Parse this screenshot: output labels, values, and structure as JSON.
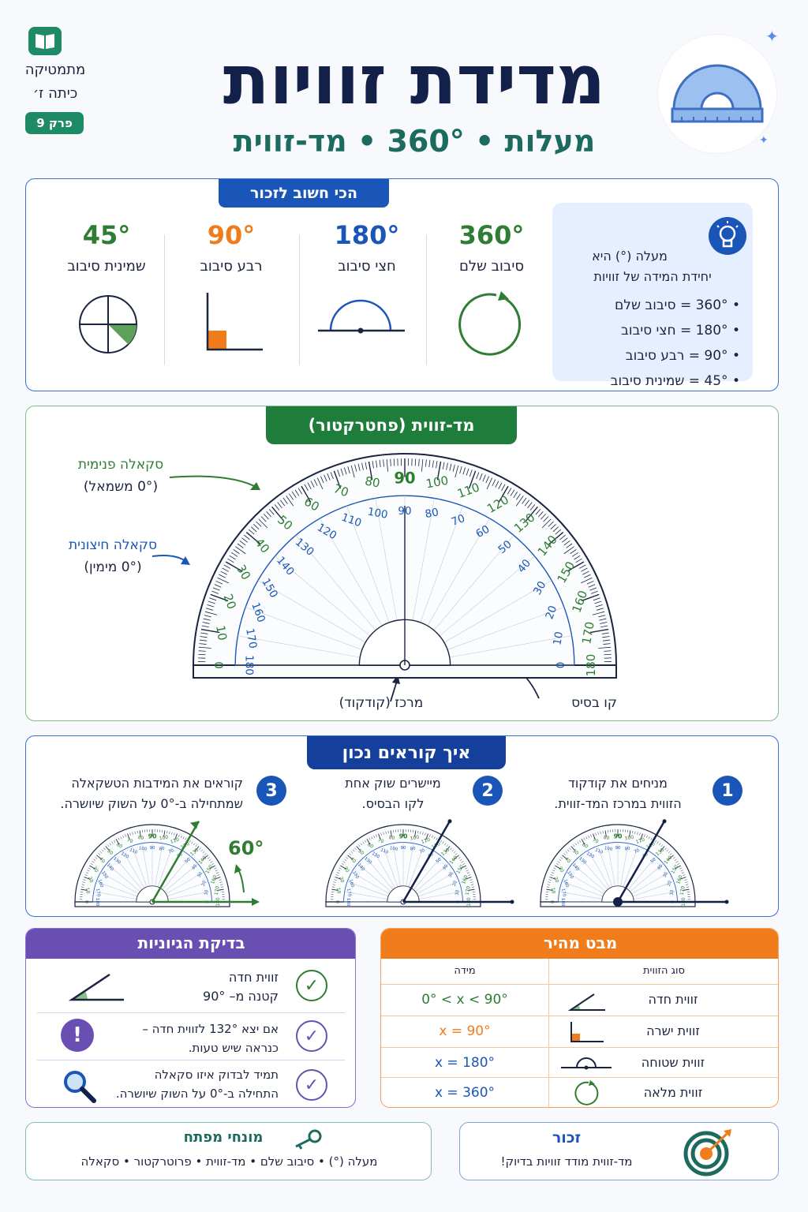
{
  "header": {
    "title": "מדידת זוויות",
    "subtitle": "מעלות • 360° • מד-זווית",
    "subject": "מתמטיקה",
    "grade": "כיתה ז׳",
    "chapter": "פרק 9"
  },
  "remember": {
    "title": "הכי חשוב לזכור",
    "info_line1": "מעלה (°) היא",
    "info_line2": "יחידת המידה של זוויות",
    "bullets": [
      "360° = סיבוב שלם",
      "180° = חצי סיבוב",
      "90° = רבע סיבוב",
      "45° = שמינית סיבוב"
    ],
    "items": [
      {
        "value": "360°",
        "label": "סיבוב שלם"
      },
      {
        "value": "180°",
        "label": "חצי סיבוב"
      },
      {
        "value": "90°",
        "label": "רבע סיבוב"
      },
      {
        "value": "45°",
        "label": "שמינית סיבוב"
      }
    ]
  },
  "protractor": {
    "title": "מד-זווית (פחטרקטור)",
    "inner_scale": "סקאלה פנימית",
    "inner_scale_note": "(0° משמאל)",
    "outer_scale": "סקאלה חיצונית",
    "outer_scale_note": "(0° מימין)",
    "center_label": "מרכז (קודקוד)",
    "base_label": "קו בסיס",
    "outer_numbers": [
      "0",
      "10",
      "20",
      "30",
      "40",
      "50",
      "60",
      "70",
      "80",
      "90",
      "100",
      "110",
      "120",
      "130",
      "140",
      "150",
      "160",
      "170",
      "180"
    ],
    "inner_numbers": [
      "180",
      "170",
      "160",
      "150",
      "140",
      "130",
      "120",
      "110",
      "100",
      "90",
      "80",
      "70",
      "60",
      "50",
      "40",
      "30",
      "20",
      "10",
      "0"
    ]
  },
  "reading": {
    "title": "איך קוראים נכון",
    "steps": [
      {
        "num": "1",
        "line1": "מניחים את קודקוד",
        "line2": "הזווית במרכז המד-זווית."
      },
      {
        "num": "2",
        "line1": "מיישרים שוק אחת",
        "line2": "לקו הבסיס."
      },
      {
        "num": "3",
        "line1": "קוראים את המידבות הטשקאלה",
        "line2": "שמתחילה ב-0° על השוק שיושרה."
      }
    ],
    "angle_label": "60°"
  },
  "quick": {
    "title": "מבט מהיר",
    "col_type": "סוג הזווית",
    "col_measure": "מידה",
    "rows": [
      {
        "type": "זווית חדה",
        "measure": "0° < x < 90°",
        "color": "#2e7d32"
      },
      {
        "type": "זווית ישרה",
        "measure": "x = 90°",
        "color": "#f07c1b"
      },
      {
        "type": "זווית שטוחה",
        "measure": "x = 180°",
        "color": "#1a56b8"
      },
      {
        "type": "זווית מלאה",
        "measure": "x = 360°",
        "color": "#1a56b8"
      }
    ]
  },
  "logic": {
    "title": "בדיקת הגיוניות",
    "rows": [
      {
        "line1": "זווית חדה",
        "line2": "קטנה מ– 90°"
      },
      {
        "line1": "אם יצא 132° לזווית חדה –",
        "line2": "כנראה שיש טעות."
      },
      {
        "line1": "תמיד לבדוק איזו סקאלה",
        "line2": "התחילה ב-0° על השוק שיושרה."
      }
    ]
  },
  "note": {
    "title": "זכור",
    "text": "מד-זווית מודד זוויות בדיוק!"
  },
  "terms": {
    "title": "מונחי מפתח",
    "text": "מעלה (°) • סיבוב שלם • מד-זווית • פרוטרקטור • סקאלה"
  },
  "colors": {
    "navy": "#13204a",
    "blue": "#1a56b8",
    "green": "#2e7d32",
    "teal": "#1d6b5f",
    "orange": "#f07c1b",
    "purple": "#6a4fb3"
  }
}
